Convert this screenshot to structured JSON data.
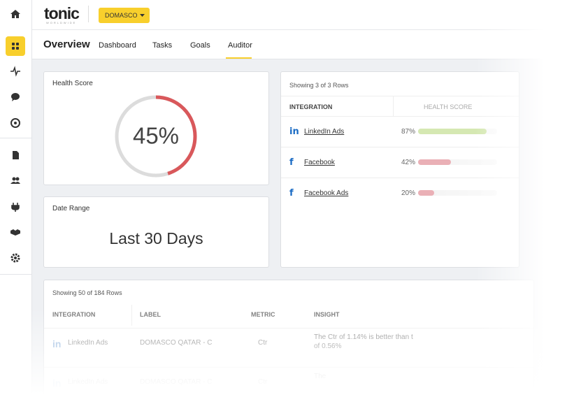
{
  "header": {
    "logo": "tonic",
    "logo_tagline": "WORLDWIDE",
    "account": "DOMASCO"
  },
  "nav": {
    "title": "Overview",
    "tabs": [
      "Dashboard",
      "Tasks",
      "Goals",
      "Auditor"
    ]
  },
  "health_score": {
    "title": "Health Score",
    "score": {
      "value": 45,
      "label": "45%"
    },
    "color": "#d9585b"
  },
  "date_range": {
    "title": "Date Range",
    "value": "Last 30 Days"
  },
  "integrations_table": {
    "summary": "Showing 3 of 3 Rows",
    "columns": [
      "INTEGRATION",
      "HEALTH SCORE"
    ],
    "rows": [
      {
        "name": "LinkedIn Ads",
        "score": {
          "value": 87,
          "label": "87%"
        },
        "color": "#d5e8b2"
      },
      {
        "name": "Facebook",
        "score": {
          "value": 42,
          "label": "42%"
        },
        "color": "#eab0b6"
      },
      {
        "name": "Facebook Ads",
        "score": {
          "value": 20,
          "label": "20%"
        },
        "color": "#eab0b6"
      }
    ]
  },
  "insights_table": {
    "summary": "Showing 50 of 184 Rows",
    "columns": [
      "INTEGRATION",
      "LABEL",
      "METRIC",
      "INSIGHT"
    ],
    "rows": [
      {
        "integration": "LinkedIn Ads",
        "label": "DOMASCO QATAR - C",
        "metric": "Ctr",
        "insight": [
          "The Ctr of 1.14% is better than t",
          "of 0.56%"
        ]
      },
      {
        "integration": "LinkedIn Ads",
        "label": "DOMASCO QATAR - C",
        "metric": "Ctr",
        "insight": [
          "The"
        ]
      }
    ]
  }
}
